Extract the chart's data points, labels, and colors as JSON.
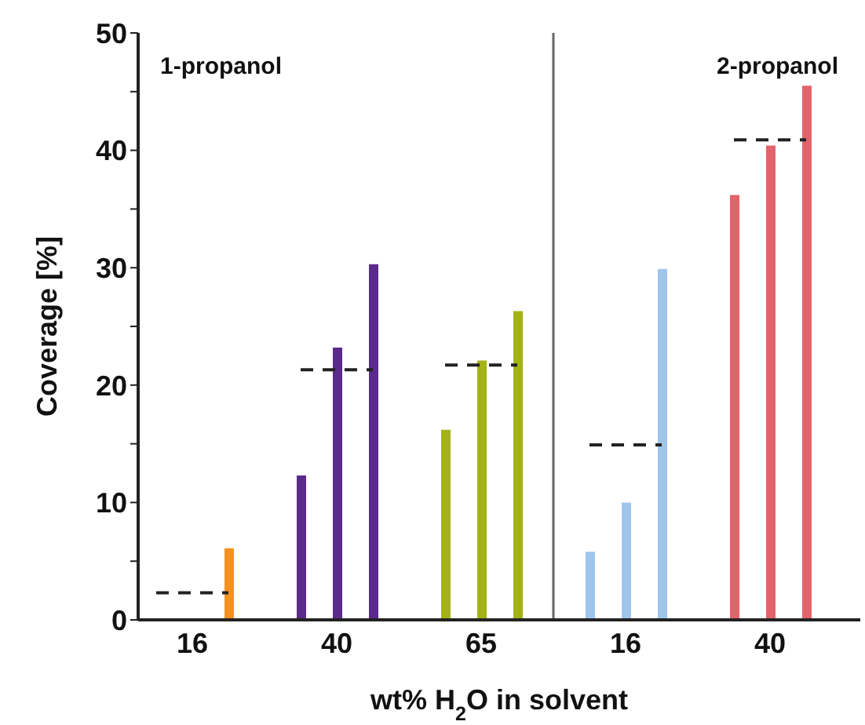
{
  "chart_data": {
    "type": "bar",
    "xlabel": "wt% H$_{2}$O in solvent",
    "ylabel": "Coverage [%]",
    "categories": [
      null,
      "16",
      null,
      null,
      null,
      "40",
      null,
      null,
      null,
      "65",
      null,
      null,
      null,
      "16",
      null,
      null,
      null,
      "40",
      null,
      null
    ],
    "series": [
      {
        "values": [
          null,
          null,
          6.1,
          null,
          12.3,
          23.2,
          30.3,
          null,
          16.2,
          22.1,
          26.3,
          null,
          5.8,
          10.0,
          29.9,
          null,
          36.2,
          40.4,
          45.5,
          null
        ],
        "colors": [
          null,
          null,
          "#f39220",
          null,
          "#5b2a8a",
          "#5b2a8a",
          "#5b2a8a",
          null,
          "#a3b214",
          "#a3b214",
          "#a3b214",
          null,
          "#9fc5eb",
          "#9fc5eb",
          "#9fc5eb",
          null,
          "#e2636b",
          "#e2636b",
          "#e2636b",
          null
        ]
      },
      {
        "type": "line",
        "color": "#222222",
        "line_style": "dashed",
        "marker": "none",
        "values": [
          2.3,
          2.3,
          2.3,
          null,
          21.3,
          21.3,
          21.3,
          null,
          21.7,
          21.7,
          21.7,
          null,
          14.9,
          14.9,
          14.9,
          null,
          40.9,
          40.9,
          40.9,
          null
        ]
      }
    ],
    "ylim": [
      0,
      50
    ],
    "yticks": [
      0,
      {
        "value": 5,
        "label": null
      },
      10,
      {
        "value": 15,
        "label": null
      },
      20,
      {
        "value": 25,
        "label": null
      },
      30,
      {
        "value": 35,
        "label": null
      },
      40,
      {
        "value": 45,
        "label": null
      },
      50
    ],
    "annotations": [
      "1-propanol",
      "2-propanol"
    ]
  }
}
